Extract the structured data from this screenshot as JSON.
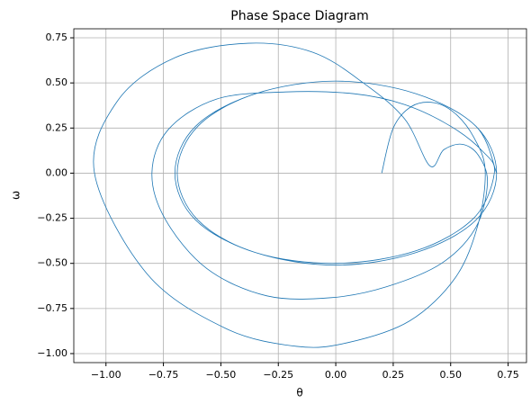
{
  "chart_data": {
    "type": "line",
    "title": "Phase Space Diagram",
    "x_label": "θ",
    "y_label": "ω",
    "xlim": [
      -1.14,
      0.83
    ],
    "ylim": [
      -1.05,
      0.8
    ],
    "xticks": [
      {
        "value": -1,
        "label": "−1.00"
      },
      {
        "value": -0.75,
        "label": "−0.75"
      },
      {
        "value": -0.5,
        "label": "−0.50"
      },
      {
        "value": -0.25,
        "label": "−0.25"
      },
      {
        "value": 0,
        "label": "0.00"
      },
      {
        "value": 0.25,
        "label": "0.25"
      },
      {
        "value": 0.5,
        "label": "0.50"
      },
      {
        "value": 0.75,
        "label": "0.75"
      }
    ],
    "yticks": [
      {
        "value": -1,
        "label": "−1.00"
      },
      {
        "value": -0.75,
        "label": "−0.75"
      },
      {
        "value": -0.5,
        "label": "−0.50"
      },
      {
        "value": -0.25,
        "label": "−0.25"
      },
      {
        "value": 0,
        "label": "0.00"
      },
      {
        "value": 0.25,
        "label": "0.25"
      },
      {
        "value": 0.5,
        "label": "0.50"
      },
      {
        "value": 0.75,
        "label": "0.75"
      }
    ],
    "grid": true,
    "color": "#1f77b4",
    "x": [
      0.2,
      0.25,
      0.33,
      0.43,
      0.52,
      0.6,
      0.65,
      0.62,
      0.52,
      0.32,
      0.05,
      -0.17,
      -0.48,
      -0.82,
      -1.05,
      -0.95,
      -0.7,
      -0.38,
      -0.1,
      0.12,
      0.3,
      0.41,
      0.47,
      0.55,
      0.62,
      0.66,
      0.61,
      0.46,
      0.22,
      -0.02,
      -0.3,
      -0.56,
      -0.74,
      -0.8,
      -0.73,
      -0.52,
      -0.22,
      0.08,
      0.3,
      0.5,
      0.64,
      0.69,
      0.6,
      0.35,
      0,
      -0.35,
      -0.6,
      -0.69,
      -0.6,
      -0.35,
      0,
      0.35,
      0.61,
      0.7,
      0.61,
      0.35,
      0,
      -0.35,
      -0.61,
      -0.7,
      -0.61,
      -0.35,
      0,
      0.35,
      0.61,
      0.7
    ],
    "values": [
      0,
      0.25,
      0.37,
      0.39,
      0.33,
      0.2,
      0.02,
      -0.28,
      -0.58,
      -0.82,
      -0.94,
      -0.96,
      -0.86,
      -0.56,
      0,
      0.4,
      0.64,
      0.72,
      0.67,
      0.5,
      0.3,
      0.04,
      0.13,
      0.16,
      0.1,
      -0.05,
      -0.3,
      -0.5,
      -0.63,
      -0.69,
      -0.68,
      -0.53,
      -0.26,
      0,
      0.24,
      0.41,
      0.45,
      0.44,
      0.38,
      0.26,
      0.12,
      0,
      -0.25,
      -0.43,
      -0.5,
      -0.44,
      -0.26,
      0,
      0.26,
      0.44,
      0.51,
      0.44,
      0.26,
      0,
      -0.26,
      -0.44,
      -0.51,
      -0.44,
      -0.26,
      0,
      0.26,
      0.44,
      0.51,
      0.44,
      0.26,
      0
    ]
  }
}
